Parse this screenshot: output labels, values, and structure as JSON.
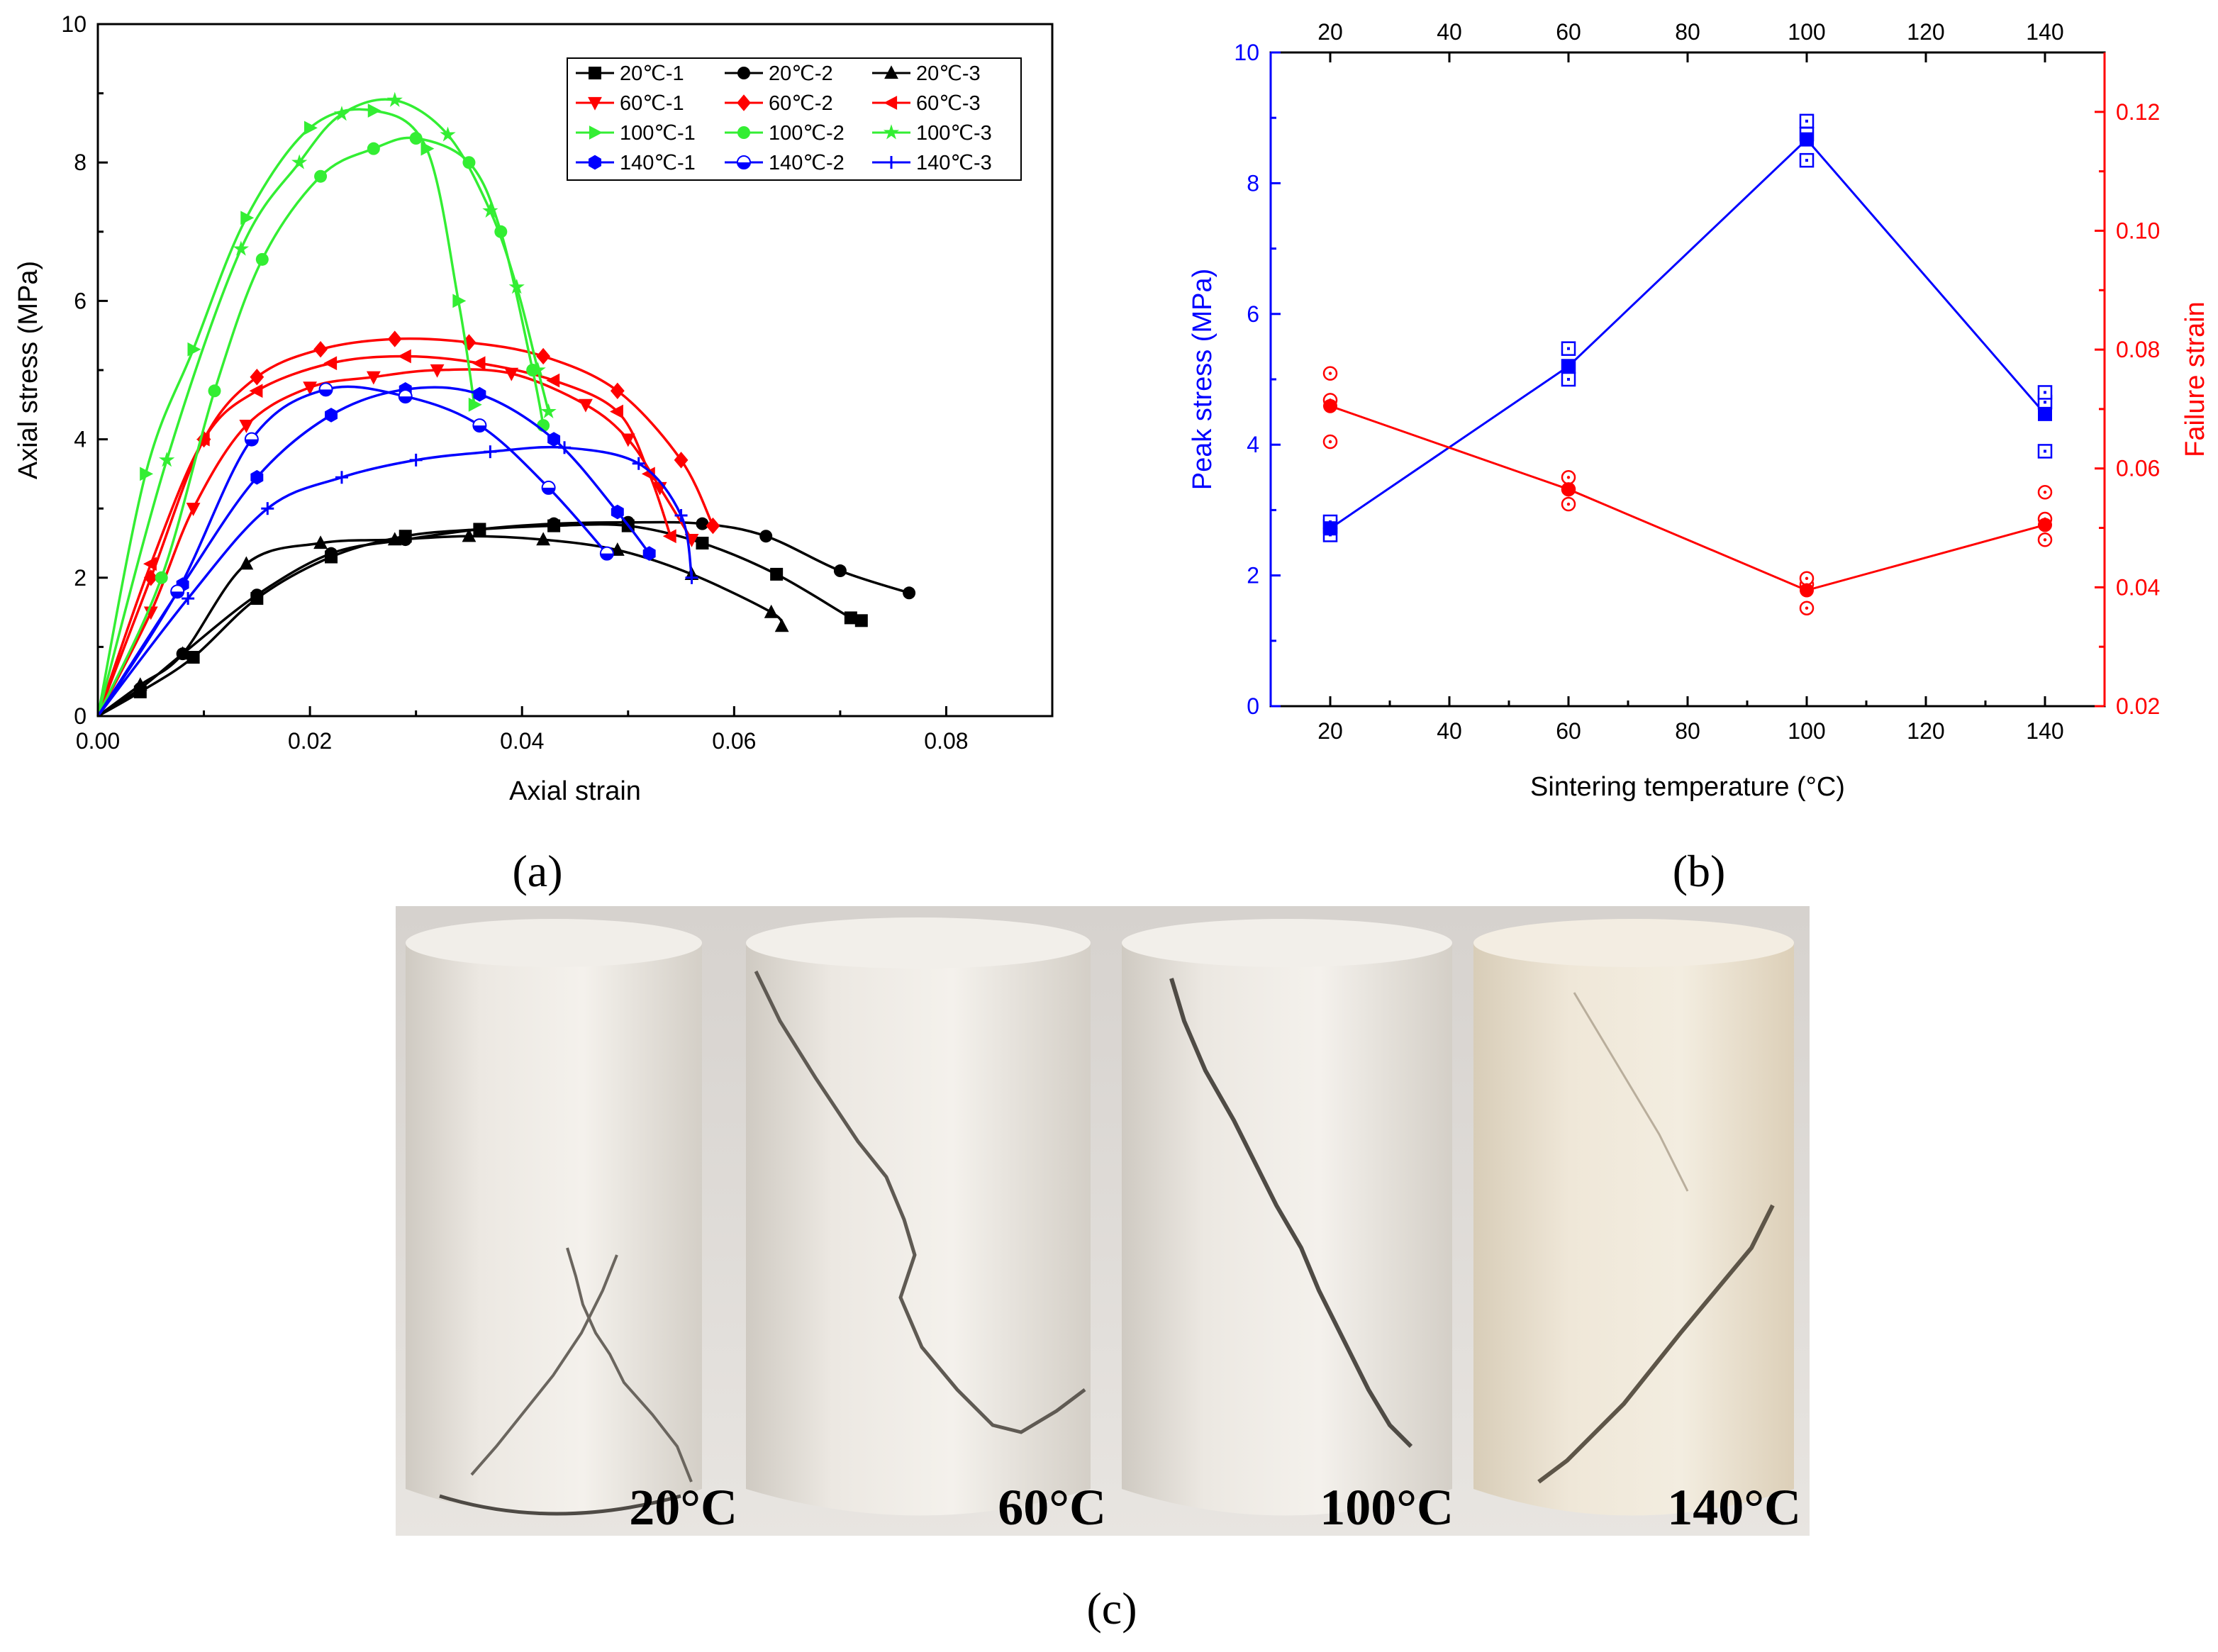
{
  "chart_data": [
    {
      "panel": "(a)",
      "type": "line",
      "xlabel": "Axial strain",
      "ylabel": "Axial stress (MPa)",
      "xlim": [
        0,
        0.09
      ],
      "ylim": [
        0,
        10
      ],
      "xticks": [
        "0.00",
        "0.02",
        "0.04",
        "0.06",
        "0.08"
      ],
      "yticks": [
        "0",
        "2",
        "4",
        "6",
        "8",
        "10"
      ],
      "legend_position": "top-right",
      "series": [
        {
          "name": "20℃-1",
          "color": "#000000",
          "marker": "square",
          "x": [
            0,
            0.004,
            0.009,
            0.015,
            0.022,
            0.029,
            0.036,
            0.043,
            0.05,
            0.057,
            0.064,
            0.071,
            0.072
          ],
          "y": [
            0,
            0.35,
            0.85,
            1.7,
            2.3,
            2.6,
            2.7,
            2.75,
            2.75,
            2.5,
            2.05,
            1.42,
            1.38
          ]
        },
        {
          "name": "20℃-2",
          "color": "#000000",
          "marker": "circle",
          "x": [
            0,
            0.004,
            0.008,
            0.015,
            0.022,
            0.029,
            0.036,
            0.043,
            0.05,
            0.057,
            0.063,
            0.07,
            0.0765
          ],
          "y": [
            0,
            0.4,
            0.9,
            1.75,
            2.35,
            2.55,
            2.7,
            2.78,
            2.8,
            2.78,
            2.6,
            2.1,
            1.78
          ]
        },
        {
          "name": "20℃-3",
          "color": "#000000",
          "marker": "triangle",
          "x": [
            0,
            0.004,
            0.008,
            0.014,
            0.021,
            0.028,
            0.035,
            0.042,
            0.049,
            0.056,
            0.0635,
            0.0645
          ],
          "y": [
            0,
            0.45,
            0.9,
            2.2,
            2.5,
            2.55,
            2.6,
            2.55,
            2.4,
            2.05,
            1.5,
            1.3
          ]
        },
        {
          "name": "60℃-1",
          "color": "#ff0000",
          "marker": "triangle-down",
          "x": [
            0,
            0.005,
            0.009,
            0.014,
            0.02,
            0.026,
            0.032,
            0.039,
            0.046,
            0.05,
            0.053,
            0.056
          ],
          "y": [
            0,
            1.5,
            3.0,
            4.2,
            4.75,
            4.9,
            5.0,
            4.95,
            4.5,
            4.0,
            3.3,
            2.55
          ]
        },
        {
          "name": "60℃-2",
          "color": "#ff0000",
          "marker": "diamond",
          "x": [
            0,
            0.005,
            0.01,
            0.015,
            0.021,
            0.028,
            0.035,
            0.042,
            0.049,
            0.055,
            0.058
          ],
          "y": [
            0,
            2.0,
            4.0,
            4.9,
            5.3,
            5.45,
            5.4,
            5.2,
            4.7,
            3.7,
            2.75
          ]
        },
        {
          "name": "60℃-3",
          "color": "#ff0000",
          "marker": "triangle-left",
          "x": [
            0,
            0.005,
            0.01,
            0.015,
            0.022,
            0.029,
            0.036,
            0.043,
            0.049,
            0.052,
            0.054
          ],
          "y": [
            0,
            2.2,
            4.0,
            4.7,
            5.1,
            5.2,
            5.1,
            4.85,
            4.4,
            3.5,
            2.6
          ]
        },
        {
          "name": "100℃-1",
          "color": "#33ee33",
          "marker": "triangle-right",
          "x": [
            0,
            0.0045,
            0.009,
            0.014,
            0.02,
            0.026,
            0.031,
            0.034,
            0.0355
          ],
          "y": [
            0,
            3.5,
            5.3,
            7.2,
            8.5,
            8.75,
            8.2,
            6.0,
            4.5
          ]
        },
        {
          "name": "100℃-2",
          "color": "#33ee33",
          "marker": "circle",
          "x": [
            0,
            0.006,
            0.011,
            0.0155,
            0.021,
            0.026,
            0.03,
            0.035,
            0.038,
            0.041,
            0.042
          ],
          "y": [
            0,
            2.0,
            4.7,
            6.6,
            7.8,
            8.2,
            8.35,
            8.0,
            7.0,
            5.0,
            4.2
          ]
        },
        {
          "name": "100℃-3",
          "color": "#33ee33",
          "marker": "star",
          "x": [
            0,
            0.0065,
            0.0135,
            0.019,
            0.023,
            0.028,
            0.033,
            0.037,
            0.0395,
            0.0415,
            0.0425
          ],
          "y": [
            0,
            3.7,
            6.75,
            8.0,
            8.7,
            8.9,
            8.4,
            7.3,
            6.2,
            5.0,
            4.4
          ]
        },
        {
          "name": "140℃-1",
          "color": "#0000ff",
          "marker": "hexagon",
          "x": [
            0,
            0.008,
            0.015,
            0.022,
            0.029,
            0.036,
            0.043,
            0.049,
            0.052
          ],
          "y": [
            0,
            1.9,
            3.45,
            4.35,
            4.72,
            4.65,
            4.0,
            2.95,
            2.35
          ]
        },
        {
          "name": "140℃-2",
          "color": "#0000ff",
          "marker": "half-circle",
          "x": [
            0,
            0.0075,
            0.0145,
            0.0215,
            0.029,
            0.036,
            0.0425,
            0.048
          ],
          "y": [
            0,
            1.8,
            4.0,
            4.72,
            4.62,
            4.2,
            3.3,
            2.35
          ]
        },
        {
          "name": "140℃-3",
          "color": "#0000ff",
          "marker": "plus",
          "x": [
            0,
            0.0085,
            0.016,
            0.023,
            0.03,
            0.037,
            0.044,
            0.051,
            0.055,
            0.056
          ],
          "y": [
            0,
            1.7,
            3.0,
            3.45,
            3.7,
            3.82,
            3.88,
            3.65,
            2.9,
            2.0
          ]
        }
      ]
    },
    {
      "panel": "(b)",
      "type": "scatter",
      "xlabel": "Sintering temperature (°C)",
      "ylabel_left": "Peak stress (MPa)",
      "ylabel_right": "Failure strain",
      "xlim": [
        10,
        150
      ],
      "ylim_left": [
        0,
        10
      ],
      "ylim_right": [
        0.02,
        0.13
      ],
      "xticks": [
        "20",
        "40",
        "60",
        "80",
        "100",
        "120",
        "140"
      ],
      "xticks_top": [
        "20",
        "40",
        "60",
        "80",
        "100",
        "120",
        "140"
      ],
      "yticks_left": [
        "0",
        "2",
        "4",
        "6",
        "8",
        "10"
      ],
      "yticks_right": [
        "0.02",
        "0.04",
        "0.06",
        "0.08",
        "0.10",
        "0.12"
      ],
      "left_color": "#0000ff",
      "right_color": "#ff0000",
      "peak_stress_mean": {
        "x": [
          20,
          60,
          100,
          140
        ],
        "y": [
          2.72,
          5.2,
          8.67,
          4.47
        ]
      },
      "peak_stress_samples": {
        "x": [
          20,
          20,
          20,
          60,
          60,
          60,
          100,
          100,
          100,
          140,
          140,
          140
        ],
        "y": [
          2.62,
          2.75,
          2.82,
          5.0,
          5.2,
          5.47,
          8.35,
          8.75,
          8.95,
          3.9,
          4.65,
          4.8
        ]
      },
      "failure_strain_mean": {
        "x": [
          20,
          60,
          100,
          140
        ],
        "y": [
          0.0705,
          0.0565,
          0.0395,
          0.0505
        ]
      },
      "failure_strain_samples": {
        "x": [
          20,
          20,
          20,
          60,
          60,
          60,
          100,
          100,
          100,
          140,
          140,
          140
        ],
        "y": [
          0.0645,
          0.0715,
          0.076,
          0.054,
          0.0565,
          0.0585,
          0.0365,
          0.0405,
          0.0415,
          0.048,
          0.0515,
          0.056
        ]
      }
    }
  ],
  "panel_labels": {
    "a": "(a)",
    "b": "(b)",
    "c": "(c)"
  },
  "photos": {
    "caption": "(c)",
    "labels": [
      "20°C",
      "60°C",
      "100°C",
      "140°C"
    ]
  }
}
